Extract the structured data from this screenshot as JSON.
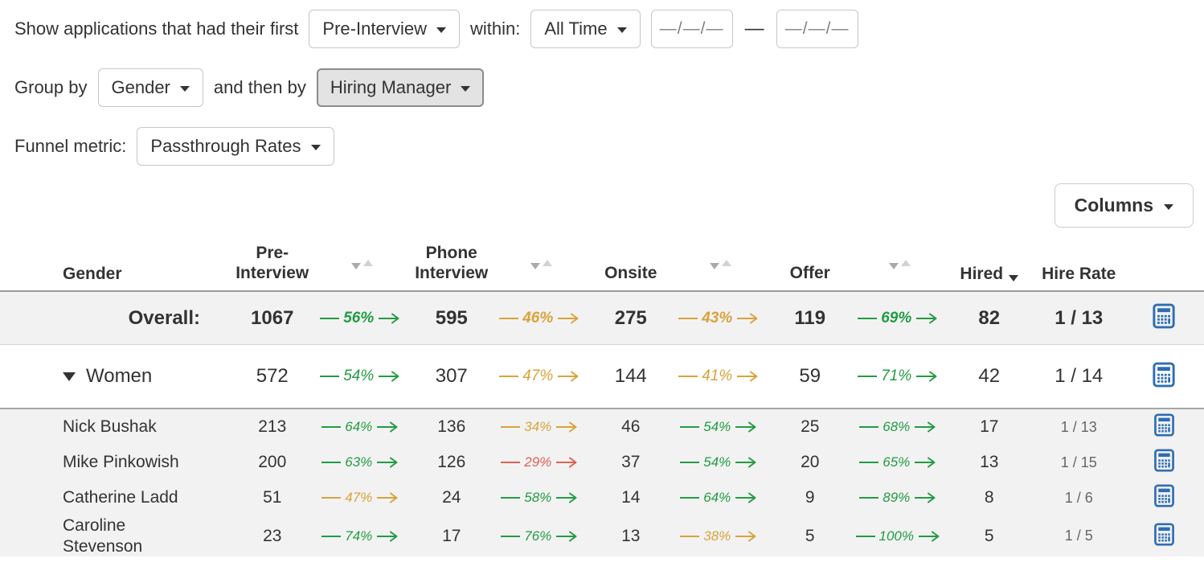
{
  "controls": {
    "row1": {
      "prefix": "Show applications that had their first",
      "stage_dropdown": "Pre-Interview",
      "within_label": "within:",
      "time_dropdown": "All Time",
      "date_from_placeholder": "—/—/—",
      "date_separator": "—",
      "date_to_placeholder": "—/—/—"
    },
    "row2": {
      "group_by_label": "Group by",
      "group_by_dropdown": "Gender",
      "then_by_label": "and then by",
      "then_by_dropdown": "Hiring Manager"
    },
    "row3": {
      "label": "Funnel metric:",
      "dropdown": "Passthrough Rates"
    }
  },
  "toolbar": {
    "columns_button": "Columns"
  },
  "icons": {
    "dropdown_caret": "▾",
    "sort_desc": "▼",
    "sort_asc": "▲",
    "expand_collapse": "▼",
    "calculator": "calculator-grid"
  },
  "colors": {
    "green": "#229c44",
    "amber": "#d8a33c",
    "red": "#dc6255",
    "calc_blue": "#2e6db4"
  },
  "table": {
    "headers": {
      "group": "Gender",
      "stages": [
        "Pre-Interview",
        "Phone Interview",
        "Onsite",
        "Offer"
      ],
      "hired": "Hired",
      "hire_rate": "Hire Rate"
    },
    "rows": [
      {
        "type": "overall",
        "label": "Overall:",
        "values": [
          "1067",
          "595",
          "275",
          "119",
          "82"
        ],
        "passes": [
          {
            "pct": "56%",
            "tone": "green"
          },
          {
            "pct": "46%",
            "tone": "amber"
          },
          {
            "pct": "43%",
            "tone": "amber"
          },
          {
            "pct": "69%",
            "tone": "green"
          }
        ],
        "hire_rate": "1 / 13"
      },
      {
        "type": "group",
        "label": "Women",
        "expanded": true,
        "values": [
          "572",
          "307",
          "144",
          "59",
          "42"
        ],
        "passes": [
          {
            "pct": "54%",
            "tone": "green"
          },
          {
            "pct": "47%",
            "tone": "amber"
          },
          {
            "pct": "41%",
            "tone": "amber"
          },
          {
            "pct": "71%",
            "tone": "green"
          }
        ],
        "hire_rate": "1 / 14"
      },
      {
        "type": "sub",
        "label": "Nick Bushak",
        "values": [
          "213",
          "136",
          "46",
          "25",
          "17"
        ],
        "passes": [
          {
            "pct": "64%",
            "tone": "green"
          },
          {
            "pct": "34%",
            "tone": "amber"
          },
          {
            "pct": "54%",
            "tone": "green"
          },
          {
            "pct": "68%",
            "tone": "green"
          }
        ],
        "hire_rate": "1 / 13"
      },
      {
        "type": "sub",
        "label": "Mike Pinkowish",
        "values": [
          "200",
          "126",
          "37",
          "20",
          "13"
        ],
        "passes": [
          {
            "pct": "63%",
            "tone": "green"
          },
          {
            "pct": "29%",
            "tone": "red"
          },
          {
            "pct": "54%",
            "tone": "green"
          },
          {
            "pct": "65%",
            "tone": "green"
          }
        ],
        "hire_rate": "1 / 15"
      },
      {
        "type": "sub",
        "label": "Catherine Ladd",
        "values": [
          "51",
          "24",
          "14",
          "9",
          "8"
        ],
        "passes": [
          {
            "pct": "47%",
            "tone": "amber"
          },
          {
            "pct": "58%",
            "tone": "green"
          },
          {
            "pct": "64%",
            "tone": "green"
          },
          {
            "pct": "89%",
            "tone": "green"
          }
        ],
        "hire_rate": "1 / 6"
      },
      {
        "type": "sub",
        "label": "Caroline Stevenson",
        "values": [
          "23",
          "17",
          "13",
          "5",
          "5"
        ],
        "passes": [
          {
            "pct": "74%",
            "tone": "green"
          },
          {
            "pct": "76%",
            "tone": "green"
          },
          {
            "pct": "38%",
            "tone": "amber"
          },
          {
            "pct": "100%",
            "tone": "green"
          }
        ],
        "hire_rate": "1 / 5"
      }
    ]
  }
}
